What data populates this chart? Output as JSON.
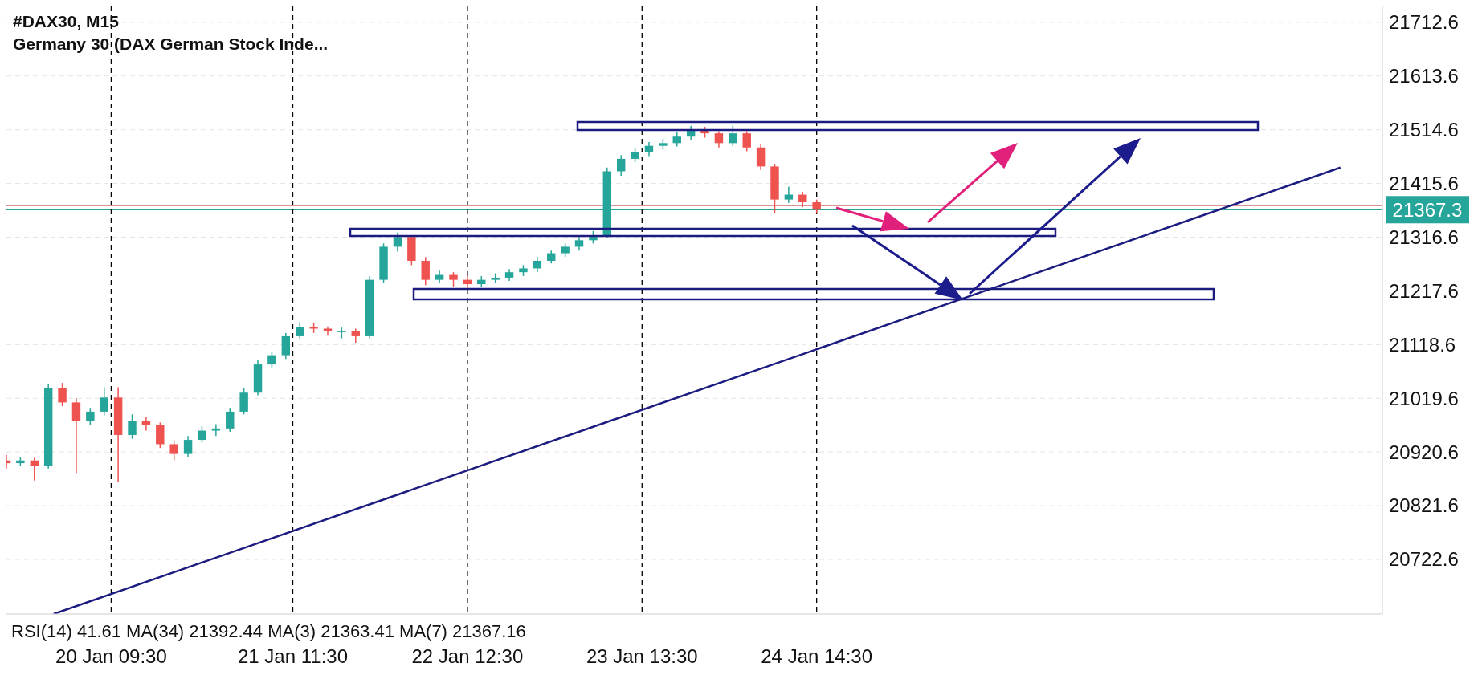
{
  "chart_data": {
    "type": "candlestick",
    "title": "#DAX30, M15",
    "subtitle": "Germany 30 (DAX German Stock Inde...",
    "annotations": [
      "RSI(14) 41.61 MA(34) 21392.44 MA(3) 21363.41 MA(7) 21367.16"
    ],
    "x": [
      "--01-19T18:30",
      "--01-19T20:30",
      "--01-19T22:30",
      "--01-20T00:30",
      "--01-20T02:30",
      "--01-20T04:30",
      "--01-20T06:30",
      "--01-20T08:30",
      "--01-20T10:30",
      "--01-20T12:30",
      "--01-20T14:30",
      "--01-20T16:30",
      "--01-20T18:30",
      "--01-20T20:30",
      "--01-20T22:30",
      "--01-21T00:30",
      "--01-21T02:30",
      "--01-21T04:30",
      "--01-21T06:30",
      "--01-21T08:30",
      "--01-21T10:30",
      "--01-21T12:30",
      "--01-21T14:30",
      "--01-21T16:30",
      "--01-21T18:30",
      "--01-21T20:30",
      "--01-21T22:30",
      "--01-22T00:30",
      "--01-22T02:30",
      "--01-22T04:30",
      "--01-22T06:30",
      "--01-22T08:30",
      "--01-22T10:30",
      "--01-22T12:30",
      "--01-22T14:30",
      "--01-22T16:30",
      "--01-22T18:30",
      "--01-22T20:30",
      "--01-22T22:30",
      "--01-23T00:30",
      "--01-23T02:30",
      "--01-23T04:30",
      "--01-23T06:30",
      "--01-23T08:30",
      "--01-23T10:30",
      "--01-23T12:30",
      "--01-23T14:30",
      "--01-23T16:30",
      "--01-23T18:30",
      "--01-23T20:30",
      "--01-23T22:30",
      "--01-24T00:30",
      "--01-24T02:30",
      "--01-24T04:30",
      "--01-24T06:30",
      "--01-24T08:30",
      "--01-24T10:30",
      "--01-24T12:30",
      "--01-24T14:30"
    ],
    "ohlc": [
      [
        20905,
        20915,
        20890,
        20900
      ],
      [
        20900,
        20912,
        20895,
        20905
      ],
      [
        20905,
        20910,
        20868,
        20895
      ],
      [
        20895,
        21045,
        20890,
        21038
      ],
      [
        21038,
        21048,
        21005,
        21012
      ],
      [
        21012,
        21020,
        20882,
        20978
      ],
      [
        20978,
        21002,
        20970,
        20995
      ],
      [
        20995,
        21040,
        20988,
        21021
      ],
      [
        21021,
        21040,
        20865,
        20952
      ],
      [
        20952,
        20990,
        20945,
        20978
      ],
      [
        20978,
        20985,
        20960,
        20970
      ],
      [
        20970,
        20975,
        20928,
        20935
      ],
      [
        20935,
        20940,
        20905,
        20917
      ],
      [
        20917,
        20950,
        20912,
        20943
      ],
      [
        20943,
        20968,
        20938,
        20960
      ],
      [
        20960,
        20972,
        20950,
        20964
      ],
      [
        20964,
        21002,
        20958,
        20995
      ],
      [
        20995,
        21038,
        20990,
        21030
      ],
      [
        21030,
        21090,
        21025,
        21082
      ],
      [
        21082,
        21105,
        21075,
        21099
      ],
      [
        21099,
        21140,
        21092,
        21134
      ],
      [
        21134,
        21160,
        21128,
        21151
      ],
      [
        21151,
        21158,
        21140,
        21148
      ],
      [
        21148,
        21152,
        21135,
        21143
      ],
      [
        21143,
        21150,
        21130,
        21143
      ],
      [
        21143,
        21148,
        21122,
        21134
      ],
      [
        21134,
        21245,
        21130,
        21238
      ],
      [
        21238,
        21305,
        21232,
        21299
      ],
      [
        21299,
        21325,
        21290,
        21317
      ],
      [
        21317,
        21320,
        21265,
        21273
      ],
      [
        21273,
        21280,
        21228,
        21238
      ],
      [
        21238,
        21255,
        21232,
        21247
      ],
      [
        21247,
        21252,
        21225,
        21238
      ],
      [
        21238,
        21245,
        21222,
        21230
      ],
      [
        21230,
        21245,
        21225,
        21238
      ],
      [
        21238,
        21250,
        21232,
        21242
      ],
      [
        21242,
        21258,
        21236,
        21252
      ],
      [
        21252,
        21265,
        21245,
        21259
      ],
      [
        21259,
        21280,
        21252,
        21273
      ],
      [
        21273,
        21292,
        21268,
        21287
      ],
      [
        21287,
        21305,
        21280,
        21299
      ],
      [
        21299,
        21318,
        21292,
        21311
      ],
      [
        21311,
        21328,
        21305,
        21320
      ],
      [
        21320,
        21445,
        21315,
        21438
      ],
      [
        21438,
        21468,
        21430,
        21461
      ],
      [
        21461,
        21480,
        21455,
        21473
      ],
      [
        21473,
        21492,
        21466,
        21485
      ],
      [
        21485,
        21498,
        21478,
        21490
      ],
      [
        21490,
        21510,
        21484,
        21502
      ],
      [
        21502,
        21522,
        21495,
        21513
      ],
      [
        21513,
        21520,
        21500,
        21508
      ],
      [
        21508,
        21512,
        21482,
        21490
      ],
      [
        21490,
        21522,
        21485,
        21508
      ],
      [
        21508,
        21512,
        21475,
        21482
      ],
      [
        21482,
        21488,
        21440,
        21447
      ],
      [
        21447,
        21452,
        21360,
        21386
      ],
      [
        21386,
        21410,
        21380,
        21395
      ],
      [
        21395,
        21400,
        21372,
        21381
      ],
      [
        21381,
        21386,
        21360,
        21367.3
      ]
    ],
    "series": [
      {
        "type": "line",
        "color": "#1c1c80",
        "x": [
          "--01-20T01:15",
          "--01-27T17:30"
        ],
        "values": [
          20622,
          21445
        ]
      }
    ],
    "ref_lines": [
      {
        "axis": "y",
        "value": 21375,
        "label": null,
        "color": "#c87070"
      },
      {
        "axis": "y",
        "value": 21367.3,
        "label": "21367.3",
        "color": "#26a69a"
      },
      {
        "axis": "x",
        "value": "--01-20T09:30",
        "label": null,
        "color": "#000000",
        "line_style": "dashed"
      },
      {
        "axis": "x",
        "value": "--01-21T11:30",
        "label": null,
        "color": "#000000",
        "line_style": "dashed"
      },
      {
        "axis": "x",
        "value": "--01-22T12:30",
        "label": null,
        "color": "#000000",
        "line_style": "dashed"
      },
      {
        "axis": "x",
        "value": "--01-23T13:30",
        "label": null,
        "color": "#000000",
        "line_style": "dashed"
      },
      {
        "axis": "x",
        "value": "--01-24T14:30",
        "label": null,
        "color": "#000000",
        "line_style": "dashed"
      }
    ],
    "xlim": [
      "--01-19T18:30",
      "--01-27T23:30"
    ],
    "xticks": [
      {
        "value": "--01-20T09:30",
        "label": "20 Jan 09:30"
      },
      {
        "value": "--01-21T11:30",
        "label": "21 Jan 11:30"
      },
      {
        "value": "--01-22T12:30",
        "label": "22 Jan 12:30"
      },
      {
        "value": "--01-23T13:30",
        "label": "23 Jan 13:30"
      },
      {
        "value": "--01-24T14:30",
        "label": "24 Jan 14:30"
      }
    ],
    "ylim": [
      20622,
      21742
    ],
    "yticks": [
      20722.6,
      20821.6,
      20920.6,
      21019.6,
      21118.6,
      21217.6,
      21316.6,
      21415.6,
      21514.6,
      21613.6,
      21712.6
    ],
    "grid": true
  }
}
